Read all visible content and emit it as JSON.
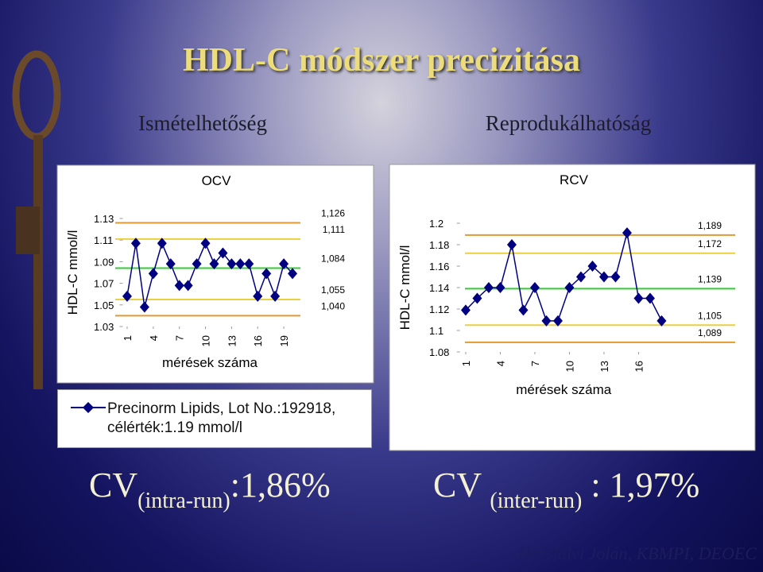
{
  "slide": {
    "title": "HDL-C módszer precizitása",
    "left_heading": "Ismételhetőség",
    "right_heading": "Reprodukálhatóság",
    "cv_left": {
      "main": "CV",
      "sub": "(intra-run)",
      "value": ":1,86%"
    },
    "cv_right": {
      "main": "CV",
      "sub": "(inter-run)",
      "value": ": 1,97%"
    },
    "footer": "Hársfalvi Jolán, KBMPI, DEOEC"
  },
  "chart_data": [
    {
      "type": "line",
      "title": "OCV",
      "y_label": "HDL-C mmol/l",
      "x_label": "mérések száma",
      "x": [
        1,
        2,
        3,
        4,
        5,
        6,
        7,
        8,
        9,
        10,
        11,
        12,
        13,
        14,
        15,
        16,
        17,
        18,
        19,
        20
      ],
      "xlim": [
        0.5,
        20.5
      ],
      "xticks": [
        1,
        4,
        7,
        10,
        13,
        16,
        19
      ],
      "ylim": [
        1.03,
        1.13
      ],
      "yticks": [
        1.03,
        1.05,
        1.07,
        1.09,
        1.11,
        1.13
      ],
      "reference_lines": [
        {
          "value": 1.126,
          "label": "1,126",
          "color": "#e09a30"
        },
        {
          "value": 1.111,
          "label": "1,111",
          "color": "#e8d040"
        },
        {
          "value": 1.084,
          "label": "1,084",
          "color": "#33cc33"
        },
        {
          "value": 1.055,
          "label": "1,055",
          "color": "#e8d040"
        },
        {
          "value": 1.04,
          "label": "1,040",
          "color": "#e09a30"
        }
      ],
      "legend": "bottom",
      "series": [
        {
          "name": "Precinorm Lipids, Lot No.:192918, célérték:1.19 mmol/l",
          "color": "#000080",
          "values": [
            1.058,
            1.107,
            1.048,
            1.079,
            1.107,
            1.088,
            1.068,
            1.068,
            1.088,
            1.107,
            1.088,
            1.098,
            1.088,
            1.088,
            1.088,
            1.058,
            1.079,
            1.058,
            1.088,
            1.079
          ]
        }
      ]
    },
    {
      "type": "line",
      "title": "RCV",
      "y_label": "HDL-C mmol/l",
      "x_label": "mérések száma",
      "x": [
        1,
        2,
        3,
        4,
        5,
        6,
        7,
        8,
        9,
        10,
        11,
        12,
        13,
        14,
        15,
        16,
        17,
        18
      ],
      "xlim": [
        0.5,
        18.5
      ],
      "xticks": [
        1,
        4,
        7,
        10,
        13,
        16
      ],
      "ylim": [
        1.08,
        1.2
      ],
      "yticks": [
        1.08,
        1.1,
        1.12,
        1.14,
        1.16,
        1.18,
        1.2
      ],
      "reference_lines": [
        {
          "value": 1.189,
          "label": "1,189",
          "color": "#e09a30"
        },
        {
          "value": 1.172,
          "label": "1,172",
          "color": "#e8d040"
        },
        {
          "value": 1.139,
          "label": "1,139",
          "color": "#33cc33"
        },
        {
          "value": 1.105,
          "label": "1,105",
          "color": "#e8d040"
        },
        {
          "value": 1.089,
          "label": "1,089",
          "color": "#e09a30"
        }
      ],
      "series": [
        {
          "color": "#000080",
          "values": [
            1.119,
            1.13,
            1.14,
            1.14,
            1.18,
            1.119,
            1.14,
            1.109,
            1.109,
            1.14,
            1.15,
            1.16,
            1.15,
            1.15,
            1.191,
            1.13,
            1.13,
            1.109
          ]
        }
      ]
    }
  ]
}
